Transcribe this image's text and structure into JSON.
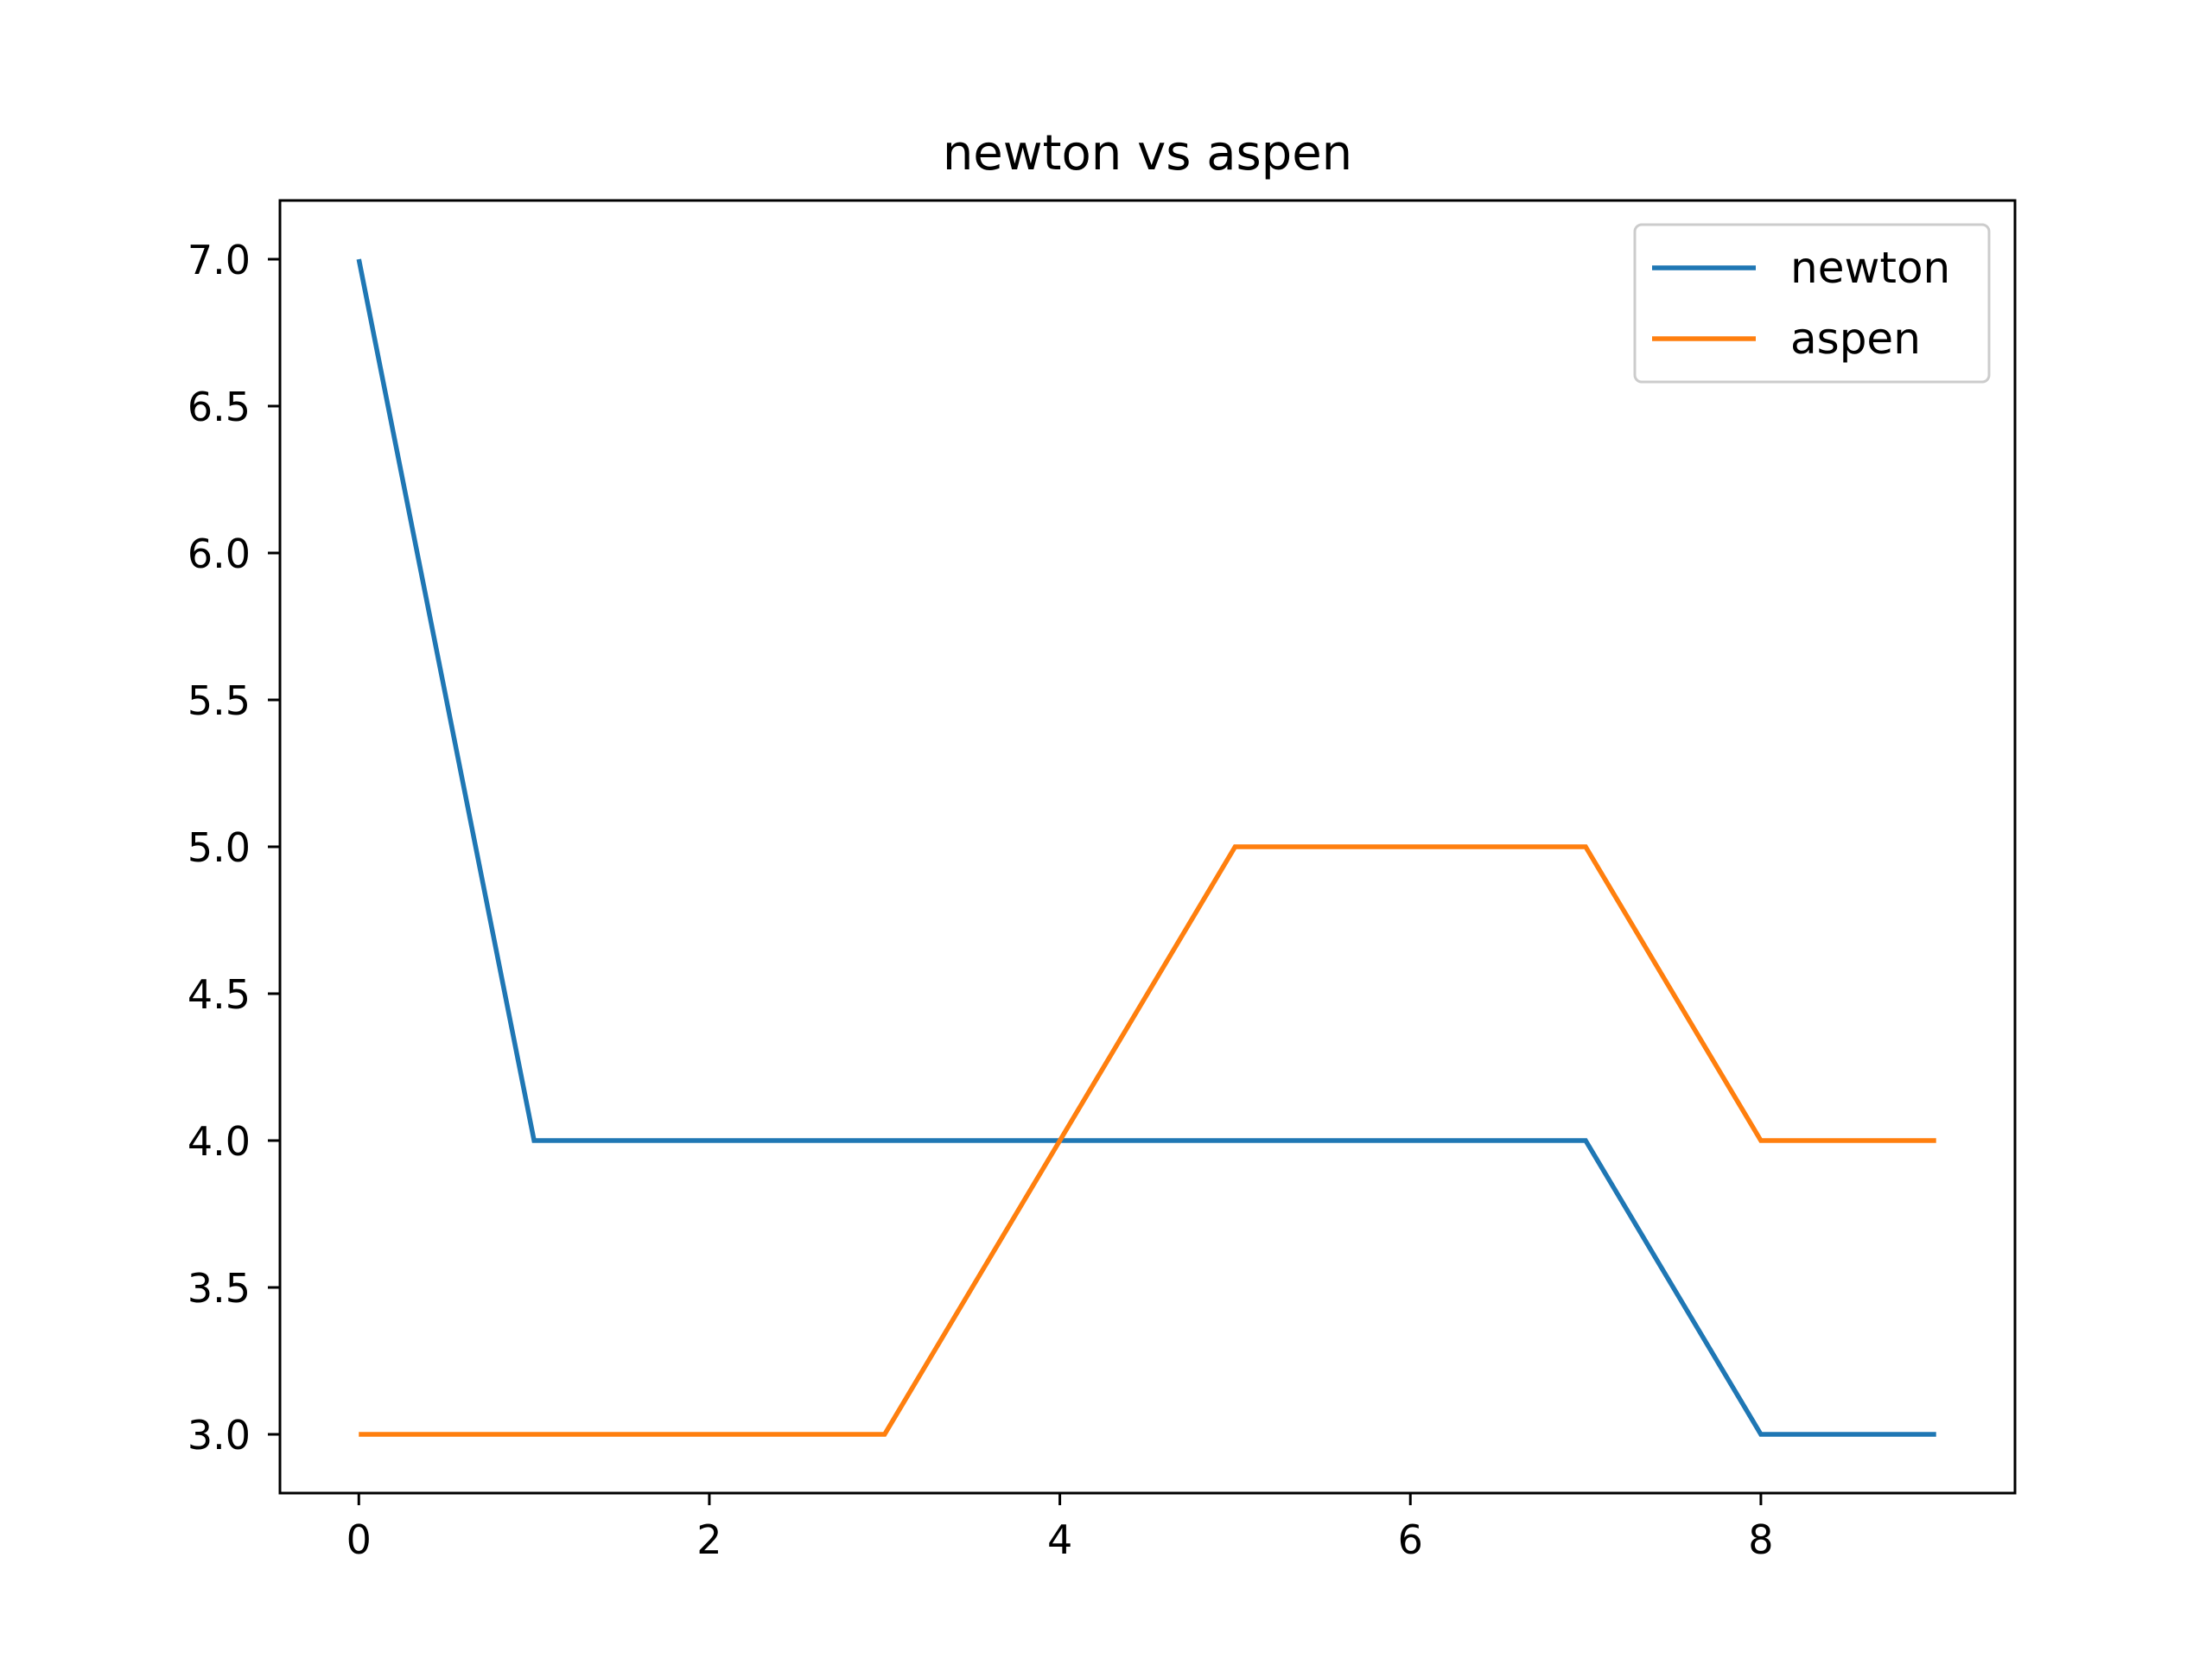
{
  "chart_data": {
    "type": "line",
    "title": "newton vs aspen",
    "xlabel": "",
    "ylabel": "",
    "x": [
      0,
      1,
      2,
      3,
      4,
      5,
      6,
      7,
      8,
      9
    ],
    "xlim": [
      -0.45,
      9.45
    ],
    "ylim": [
      2.8,
      7.2
    ],
    "xticks": [
      0,
      2,
      4,
      6,
      8
    ],
    "xtick_labels": [
      "0",
      "2",
      "4",
      "6",
      "8"
    ],
    "yticks": [
      3.0,
      3.5,
      4.0,
      4.5,
      5.0,
      5.5,
      6.0,
      6.5,
      7.0
    ],
    "ytick_labels": [
      "3.0",
      "3.5",
      "4.0",
      "4.5",
      "5.0",
      "5.5",
      "6.0",
      "6.5",
      "7.0"
    ],
    "grid": false,
    "legend_position": "upper-right",
    "series": [
      {
        "name": "newton",
        "color": "#1f77b4",
        "values": [
          7,
          4,
          4,
          4,
          4,
          4,
          4,
          4,
          3,
          3
        ]
      },
      {
        "name": "aspen",
        "color": "#ff7f0e",
        "values": [
          3,
          3,
          3,
          3,
          4,
          5,
          5,
          5,
          4,
          4
        ]
      }
    ]
  }
}
